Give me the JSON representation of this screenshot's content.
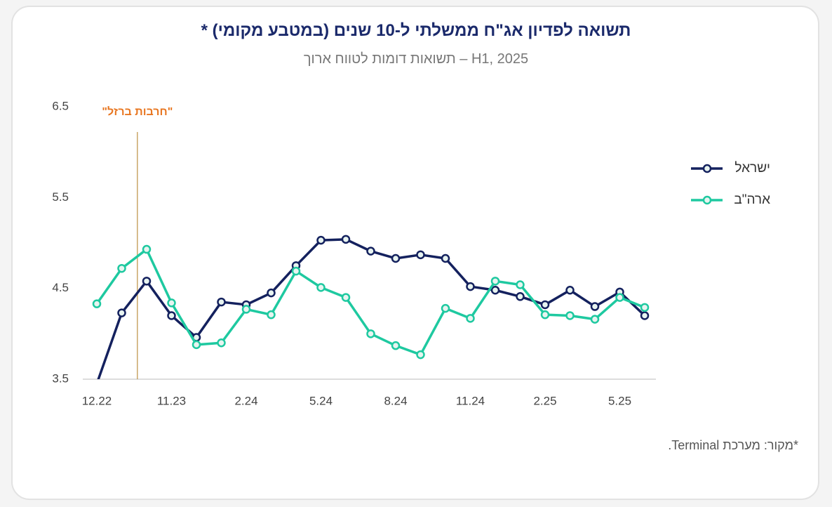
{
  "chart_data": {
    "type": "line",
    "title": "תשואה לפדיון אג\"ח ממשלתי ל-10 שנים (במטבע מקומי) *",
    "subtitle": "H1, 2025 – תשואות דומות לטווח ארוך",
    "source": "*מקור: מערכת Terminal.",
    "annotation": "\"חרבות ברזל\"",
    "categories": [
      "12.22",
      null,
      null,
      "11.23",
      null,
      null,
      "2.24",
      null,
      null,
      "5.24",
      null,
      null,
      "8.24",
      null,
      null,
      "11.24",
      null,
      null,
      "2.25",
      null,
      null,
      "5.25",
      null
    ],
    "series": [
      {
        "name": "ישראל",
        "color": "#14215e",
        "values": [
          3.45,
          4.23,
          4.58,
          4.2,
          3.96,
          4.35,
          4.32,
          4.45,
          4.75,
          5.03,
          5.04,
          4.91,
          4.83,
          4.87,
          4.83,
          4.52,
          4.48,
          4.41,
          4.32,
          4.48,
          4.3,
          4.46,
          4.2
        ]
      },
      {
        "name": "ארה\"ב",
        "color": "#1ec9a0",
        "values": [
          4.33,
          4.72,
          4.93,
          4.34,
          3.88,
          3.9,
          4.27,
          4.21,
          4.69,
          4.51,
          4.4,
          4.0,
          3.87,
          3.77,
          4.28,
          4.17,
          4.58,
          4.54,
          4.21,
          4.2,
          4.16,
          4.4,
          4.29
        ]
      }
    ],
    "ylim": [
      3.5,
      6.5
    ],
    "yticks": [
      3.5,
      4.5,
      5.5,
      6.5
    ],
    "grid": false
  }
}
